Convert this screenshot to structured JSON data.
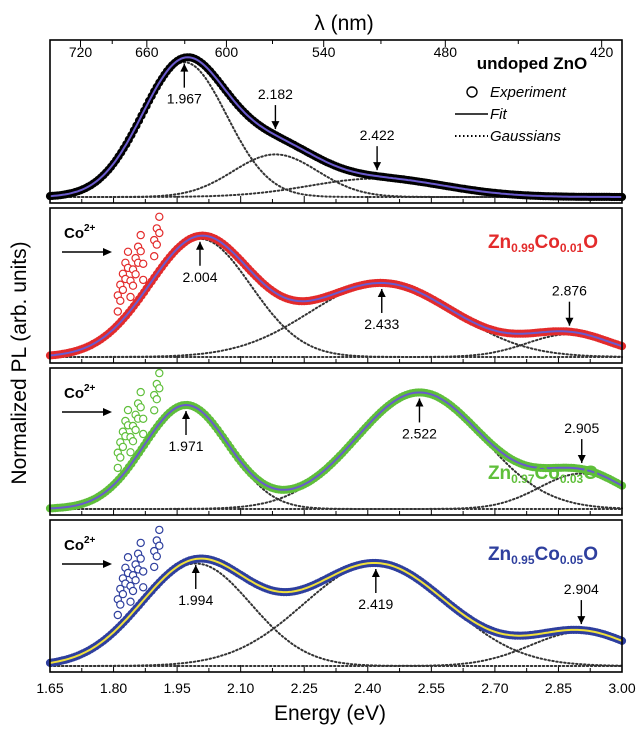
{
  "figure": {
    "top_axis_label": "λ (nm)",
    "xlabel": "Energy (eV)",
    "ylabel": "Normalized PL (arb. units)",
    "x_ticks": [
      "1.65",
      "1.80",
      "1.95",
      "2.10",
      "2.25",
      "2.40",
      "2.55",
      "2.70",
      "2.85",
      "3.00"
    ],
    "top_ticks": [
      "720",
      "660",
      "600",
      "540",
      "480",
      "420"
    ],
    "legend": {
      "experiment": "Experiment",
      "fit": "Fit",
      "gaussians": "Gaussians"
    }
  },
  "chart_data": [
    {
      "type": "line",
      "sample": {
        "text": "undoped ZnO",
        "color": "#000000"
      },
      "exp_color": "#000000",
      "fit_color": "#6a5acd",
      "co_label": "",
      "xlim": [
        1.65,
        3.0
      ],
      "ylim": [
        0,
        1.05
      ],
      "gaussians": [
        {
          "center": 1.967,
          "height": 0.95,
          "width": 0.1
        },
        {
          "center": 2.182,
          "height": 0.3,
          "width": 0.1
        },
        {
          "center": 2.422,
          "height": 0.13,
          "width": 0.16
        }
      ],
      "peak_labels": [
        {
          "text": "1.967",
          "x": 1.967,
          "dir": "up"
        },
        {
          "text": "2.182",
          "x": 2.182,
          "dir": "down"
        },
        {
          "text": "2.422",
          "x": 2.422,
          "dir": "down"
        }
      ]
    },
    {
      "type": "line",
      "sample": {
        "text": "Zn0.99Co0.01O",
        "parts": [
          "Zn",
          "0.99",
          "Co",
          "0.01",
          "O"
        ],
        "color": "#e32b2b"
      },
      "exp_color": "#e32b2b",
      "fit_color": "#6a5acd",
      "co_label": "Co",
      "co_sup": "2+",
      "xlim": [
        1.65,
        3.0
      ],
      "ylim": [
        0,
        1.05
      ],
      "gaussians": [
        {
          "center": 2.004,
          "height": 0.88,
          "width": 0.12
        },
        {
          "center": 2.433,
          "height": 0.55,
          "width": 0.17
        },
        {
          "center": 2.876,
          "height": 0.17,
          "width": 0.1
        }
      ],
      "peak_labels": [
        {
          "text": "2.004",
          "x": 2.004,
          "dir": "up"
        },
        {
          "text": "2.433",
          "x": 2.433,
          "dir": "up"
        },
        {
          "text": "2.876",
          "x": 2.876,
          "dir": "down"
        }
      ]
    },
    {
      "type": "line",
      "sample": {
        "text": "Zn0.97Co0.03O",
        "parts": [
          "Zn",
          "0.97",
          "Co",
          "0.03",
          "O"
        ],
        "color": "#5fbf3a"
      },
      "exp_color": "#5fbf3a",
      "fit_color": "#6a5acd",
      "co_label": "Co",
      "co_sup": "2+",
      "xlim": [
        1.65,
        3.0
      ],
      "ylim": [
        0,
        1.05
      ],
      "gaussians": [
        {
          "center": 1.971,
          "height": 0.82,
          "width": 0.1
        },
        {
          "center": 2.522,
          "height": 0.92,
          "width": 0.15
        },
        {
          "center": 2.905,
          "height": 0.28,
          "width": 0.1
        }
      ],
      "peak_labels": [
        {
          "text": "1.971",
          "x": 1.971,
          "dir": "up"
        },
        {
          "text": "2.522",
          "x": 2.522,
          "dir": "up"
        },
        {
          "text": "2.905",
          "x": 2.905,
          "dir": "down"
        }
      ]
    },
    {
      "type": "line",
      "sample": {
        "text": "Zn0.95Co0.05O",
        "parts": [
          "Zn",
          "0.95",
          "Co",
          "0.05",
          "O"
        ],
        "color": "#2e3f9e"
      },
      "exp_color": "#2e3f9e",
      "fit_color": "#f0e03c",
      "co_label": "Co",
      "co_sup": "2+",
      "xlim": [
        1.65,
        3.0
      ],
      "ylim": [
        0,
        1.05
      ],
      "gaussians": [
        {
          "center": 1.994,
          "height": 0.78,
          "width": 0.13
        },
        {
          "center": 2.419,
          "height": 0.78,
          "width": 0.17
        },
        {
          "center": 2.904,
          "height": 0.26,
          "width": 0.12
        }
      ],
      "peak_labels": [
        {
          "text": "1.994",
          "x": 1.994,
          "dir": "up"
        },
        {
          "text": "2.419",
          "x": 2.419,
          "dir": "up"
        },
        {
          "text": "2.904",
          "x": 2.904,
          "dir": "down"
        }
      ]
    }
  ]
}
